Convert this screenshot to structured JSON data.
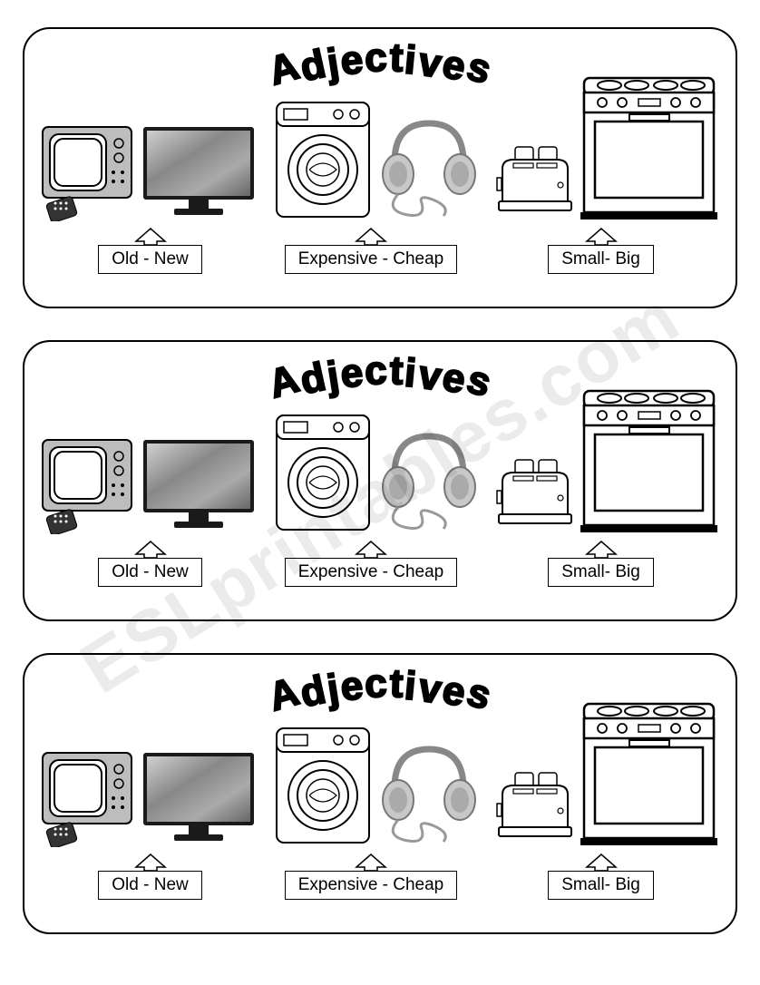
{
  "watermark_text": "ESLprintables.com",
  "card": {
    "title": "Adjectives",
    "title_fontsize": 44,
    "title_font": "Comic Sans MS",
    "border_color": "#000000",
    "border_radius": 30,
    "background": "#ffffff",
    "pairs": [
      {
        "label": "Old - New",
        "items": [
          "old-tv",
          "flat-tv"
        ]
      },
      {
        "label": "Expensive - Cheap",
        "items": [
          "washing-machine",
          "headphones"
        ]
      },
      {
        "label": "Small- Big",
        "items": [
          "toaster",
          "stove"
        ]
      }
    ],
    "label_fontsize": 19,
    "label_border": "#000000"
  },
  "repeat_count": 3,
  "colors": {
    "line": "#000000",
    "photo_gray": "#9a9a9a",
    "photo_dark": "#5a5a5a",
    "light_gray": "#d8d8d8"
  }
}
